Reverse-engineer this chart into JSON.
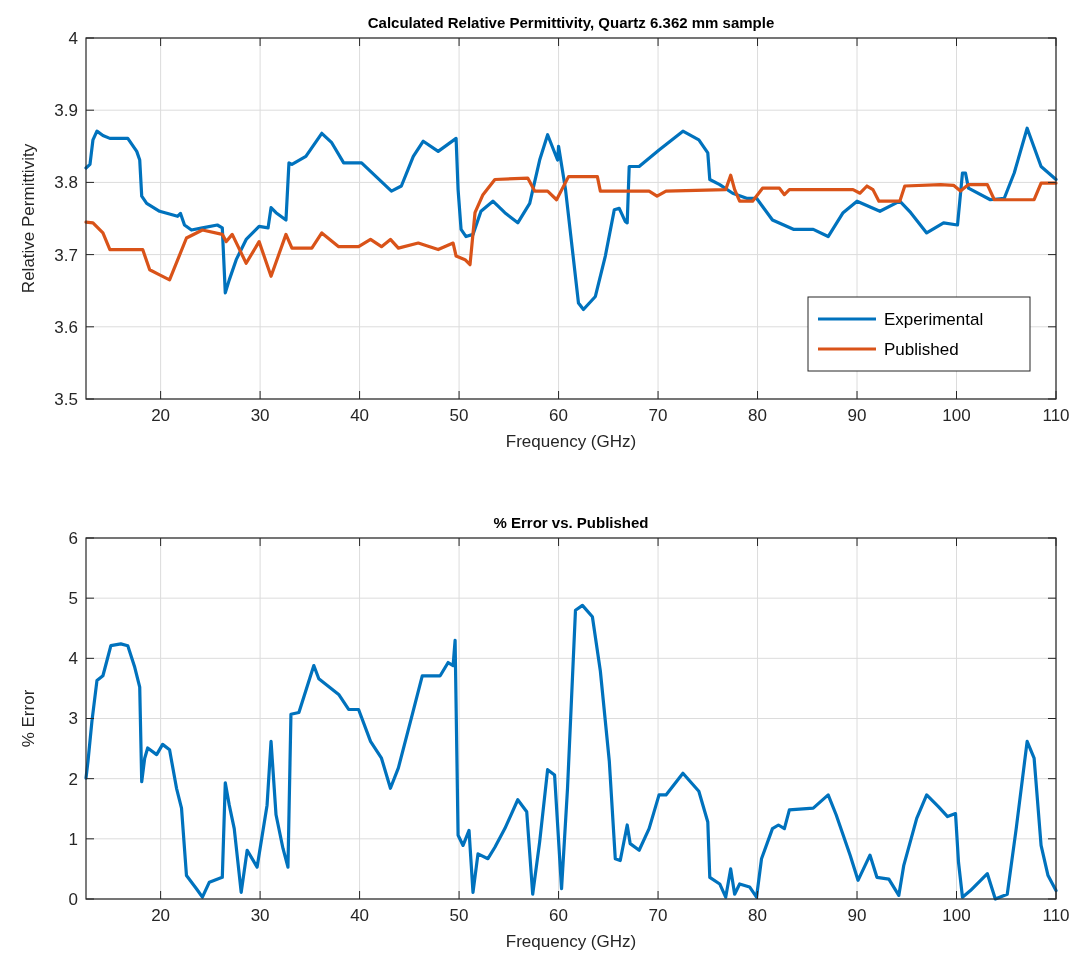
{
  "chart_data": [
    {
      "type": "line",
      "title": "Calculated Relative Permittivity, Quartz 6.362 mm sample",
      "xlabel": "Frequency (GHz)",
      "ylabel": "Relative Permittivity",
      "xlim": [
        12.5,
        110
      ],
      "ylim": [
        3.5,
        4
      ],
      "xticks": [
        20,
        30,
        40,
        50,
        60,
        70,
        80,
        90,
        100,
        110
      ],
      "yticks": [
        3.5,
        3.6,
        3.7,
        3.8,
        3.9,
        4
      ],
      "grid": true,
      "legend": "bottom right",
      "series": [
        {
          "name": "Experimental",
          "color": "#0072bd",
          "x": [
            12.5,
            12.9,
            13.2,
            13.6,
            14.2,
            14.9,
            16.7,
            17.6,
            17.9,
            18.1,
            18.6,
            19.9,
            21.7,
            22.0,
            22.4,
            23.1,
            24.2,
            25.7,
            26.2,
            26.5,
            26.9,
            27.6,
            28.6,
            29.9,
            30.8,
            31.1,
            31.6,
            32.6,
            32.9,
            33.2,
            34.6,
            36.2,
            37.2,
            38.4,
            40.2,
            43.2,
            44.2,
            45.4,
            46.4,
            47.9,
            49.7,
            49.9,
            50.2,
            50.7,
            51.4,
            52.2,
            53.4,
            54.6,
            55.9,
            57.1,
            58.1,
            58.9,
            59.9,
            60.0,
            60.7,
            62.0,
            62.5,
            63.7,
            64.7,
            65.6,
            66.1,
            66.7,
            66.9,
            67.1,
            68.1,
            70.1,
            72.5,
            74.1,
            75.0,
            75.2,
            76.2,
            77.5,
            78.9,
            79.9,
            81.5,
            83.6,
            85.6,
            87.1,
            88.6,
            90.0,
            92.3,
            94.3,
            95.4,
            97.0,
            98.7,
            100.1,
            100.6,
            100.9,
            101.2,
            103.4,
            104.8,
            105.8,
            107.1,
            108.5,
            110
          ],
          "values": [
            3.82,
            3.825,
            3.859,
            3.871,
            3.865,
            3.861,
            3.861,
            3.843,
            3.831,
            3.781,
            3.771,
            3.76,
            3.753,
            3.757,
            3.741,
            3.734,
            3.737,
            3.741,
            3.737,
            3.647,
            3.665,
            3.693,
            3.721,
            3.739,
            3.737,
            3.765,
            3.758,
            3.748,
            3.827,
            3.825,
            3.836,
            3.868,
            3.855,
            3.827,
            3.827,
            3.788,
            3.795,
            3.836,
            3.857,
            3.843,
            3.861,
            3.79,
            3.735,
            3.725,
            3.728,
            3.76,
            3.774,
            3.758,
            3.744,
            3.771,
            3.831,
            3.866,
            3.831,
            3.85,
            3.79,
            3.633,
            3.624,
            3.642,
            3.698,
            3.762,
            3.764,
            3.746,
            3.744,
            3.822,
            3.822,
            3.845,
            3.871,
            3.859,
            3.841,
            3.804,
            3.797,
            3.785,
            3.778,
            3.778,
            3.748,
            3.735,
            3.735,
            3.725,
            3.758,
            3.774,
            3.76,
            3.774,
            3.758,
            3.73,
            3.744,
            3.741,
            3.813,
            3.813,
            3.792,
            3.776,
            3.778,
            3.813,
            3.875,
            3.822,
            3.804
          ]
        },
        {
          "name": "Published",
          "color": "#d95319",
          "x": [
            12.5,
            13.2,
            14.2,
            14.9,
            18.2,
            18.9,
            19.9,
            20.9,
            22.6,
            24.2,
            26.2,
            26.6,
            27.2,
            28.6,
            29.9,
            31.1,
            32.6,
            33.2,
            35.2,
            36.2,
            37.9,
            39.9,
            41.1,
            42.2,
            43.1,
            43.9,
            45.9,
            47.9,
            49.4,
            49.7,
            50.6,
            51.1,
            51.6,
            52.4,
            53.6,
            56.9,
            57.6,
            58.9,
            59.8,
            61.0,
            63.9,
            64.2,
            69.1,
            69.9,
            70.8,
            76.8,
            77.3,
            77.7,
            78.2,
            79.5,
            80.5,
            82.2,
            82.7,
            83.2,
            89.6,
            90.3,
            91.0,
            91.6,
            92.2,
            94.3,
            94.8,
            98.4,
            99.7,
            100.4,
            101.2,
            103.1,
            103.8,
            107.8,
            108.5,
            110
          ],
          "values": [
            3.745,
            3.744,
            3.73,
            3.707,
            3.707,
            3.679,
            3.672,
            3.665,
            3.723,
            3.734,
            3.728,
            3.718,
            3.728,
            3.688,
            3.718,
            3.67,
            3.728,
            3.709,
            3.709,
            3.73,
            3.711,
            3.711,
            3.721,
            3.711,
            3.721,
            3.709,
            3.716,
            3.707,
            3.716,
            3.698,
            3.693,
            3.686,
            3.758,
            3.783,
            3.804,
            3.806,
            3.788,
            3.788,
            3.776,
            3.808,
            3.808,
            3.788,
            3.788,
            3.781,
            3.788,
            3.79,
            3.81,
            3.79,
            3.774,
            3.774,
            3.792,
            3.792,
            3.783,
            3.79,
            3.79,
            3.785,
            3.795,
            3.79,
            3.774,
            3.774,
            3.795,
            3.797,
            3.796,
            3.788,
            3.797,
            3.797,
            3.776,
            3.776,
            3.799,
            3.799
          ]
        }
      ]
    },
    {
      "type": "line",
      "title": "% Error vs. Published",
      "xlabel": "Frequency (GHz)",
      "ylabel": "% Error",
      "xlim": [
        12.5,
        110
      ],
      "ylim": [
        0,
        6
      ],
      "xticks": [
        20,
        30,
        40,
        50,
        60,
        70,
        80,
        90,
        100,
        110
      ],
      "yticks": [
        0,
        1,
        2,
        3,
        4,
        5,
        6
      ],
      "grid": true,
      "series": [
        {
          "color": "#0072bd",
          "x": [
            12.5,
            12.7,
            13.1,
            13.6,
            14.2,
            14.6,
            15.0,
            16.0,
            16.7,
            17.4,
            17.9,
            18.1,
            18.4,
            18.7,
            19.6,
            20.2,
            20.9,
            21.6,
            22.1,
            22.6,
            23.6,
            24.2,
            24.9,
            26.2,
            26.5,
            26.9,
            27.4,
            28.1,
            28.7,
            29.7,
            30.7,
            31.1,
            31.6,
            32.3,
            32.8,
            33.1,
            33.9,
            35.4,
            35.9,
            37.9,
            38.9,
            39.9,
            41.1,
            42.2,
            43.1,
            43.9,
            45.3,
            46.3,
            48.1,
            48.9,
            49.4,
            49.6,
            49.9,
            50.4,
            51.0,
            51.4,
            51.9,
            52.9,
            53.6,
            54.6,
            55.9,
            56.8,
            57.4,
            58.1,
            58.9,
            59.6,
            60.3,
            60.9,
            61.7,
            62.4,
            63.4,
            64.2,
            65.1,
            65.7,
            66.2,
            66.9,
            67.2,
            68.1,
            69.1,
            70.1,
            70.8,
            72.5,
            74.1,
            75.0,
            75.2,
            76.2,
            76.8,
            77.3,
            77.7,
            78.2,
            79.2,
            79.9,
            80.4,
            81.5,
            82.1,
            82.7,
            83.2,
            85.6,
            87.1,
            87.9,
            89.3,
            90.1,
            91.3,
            92.0,
            93.2,
            94.2,
            94.7,
            96.0,
            97.0,
            98.2,
            99.1,
            99.9,
            100.2,
            100.6,
            101.4,
            103.1,
            103.9,
            105.1,
            106.0,
            107.1,
            107.8,
            108.5,
            109.2,
            110
          ],
          "values": [
            2.01,
            2.29,
            2.96,
            3.63,
            3.71,
            3.96,
            4.21,
            4.24,
            4.21,
            3.85,
            3.52,
            1.95,
            2.34,
            2.51,
            2.4,
            2.57,
            2.48,
            1.84,
            1.51,
            0.39,
            0.17,
            0.03,
            0.28,
            0.36,
            1.93,
            1.56,
            1.17,
            0.11,
            0.81,
            0.53,
            1.56,
            2.62,
            1.4,
            0.84,
            0.53,
            3.07,
            3.1,
            3.88,
            3.66,
            3.4,
            3.15,
            3.15,
            2.62,
            2.34,
            1.84,
            2.18,
            3.07,
            3.71,
            3.71,
            3.93,
            3.88,
            4.3,
            1.06,
            0.89,
            1.14,
            0.11,
            0.75,
            0.67,
            0.86,
            1.17,
            1.65,
            1.45,
            0.08,
            0.95,
            2.15,
            2.06,
            0.17,
            1.84,
            4.8,
            4.88,
            4.69,
            3.79,
            2.29,
            0.67,
            0.64,
            1.23,
            0.92,
            0.81,
            1.17,
            1.73,
            1.73,
            2.09,
            1.79,
            1.28,
            0.36,
            0.25,
            0.03,
            0.5,
            0.08,
            0.25,
            0.2,
            0.03,
            0.67,
            1.17,
            1.23,
            1.17,
            1.48,
            1.51,
            1.73,
            1.4,
            0.73,
            0.31,
            0.73,
            0.36,
            0.33,
            0.06,
            0.56,
            1.34,
            1.73,
            1.53,
            1.37,
            1.42,
            0.61,
            0.03,
            0.14,
            0.42,
            0.0,
            0.08,
            1.17,
            2.62,
            2.34,
            0.89,
            0.39,
            0.14
          ]
        }
      ]
    }
  ]
}
